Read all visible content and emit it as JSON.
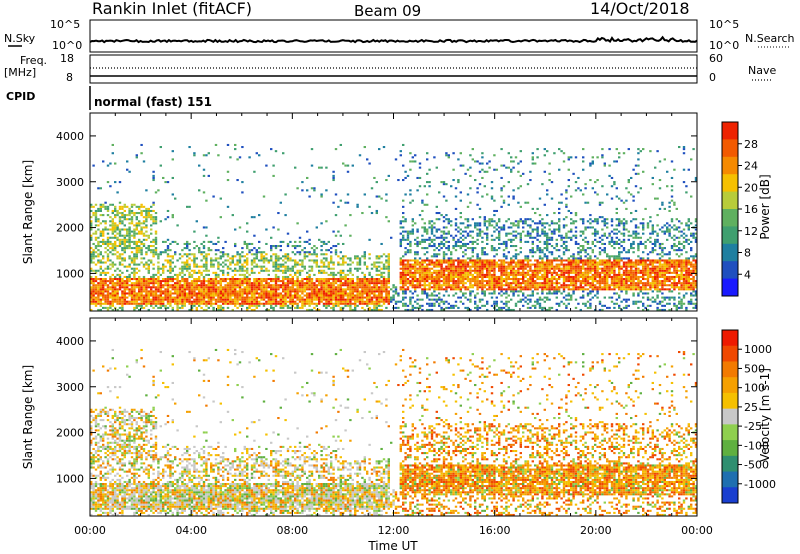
{
  "header": {
    "station": "Rankin Inlet (fitACF)",
    "beam": "Beam 09",
    "date": "14/Oct/2018"
  },
  "noise_panel": {
    "left_label": "N.Sky",
    "right_label": "N.Search",
    "ticks_left": [
      "10^5",
      "10^0"
    ],
    "ticks_right": [
      "10^5",
      "10^0"
    ]
  },
  "freq_panel": {
    "left_label_1": "Freq.",
    "left_label_2": "[MHz]",
    "right_label": "Nave",
    "ticks_left": [
      "18",
      "8"
    ],
    "ticks_right": [
      "60",
      "0"
    ]
  },
  "cpid": {
    "label": "CPID",
    "value": "normal (fast) 151"
  },
  "x_axis": {
    "title": "Time UT",
    "ticks": [
      "00:00",
      "04:00",
      "08:00",
      "12:00",
      "16:00",
      "20:00",
      "00:00"
    ]
  },
  "y_axis": {
    "title": "Slant Range [km]",
    "ticks": [
      "1000",
      "2000",
      "3000",
      "4000"
    ]
  },
  "chart_data": [
    {
      "type": "heatmap",
      "name": "power",
      "xlabel": "Time UT",
      "ylabel": "Slant Range [km]",
      "xlim": [
        "00:00",
        "24:00"
      ],
      "ylim": [
        180,
        4500
      ],
      "x_ticks": [
        "00:00",
        "04:00",
        "08:00",
        "12:00",
        "16:00",
        "20:00",
        "00:00"
      ],
      "y_ticks": [
        1000,
        2000,
        3000,
        4000
      ],
      "colorbar": {
        "label": "Power [dB]",
        "ticks": [
          "28",
          "24",
          "20",
          "16",
          "12",
          "8",
          "4"
        ],
        "range": [
          0,
          30
        ],
        "colors": [
          "#1a1aff",
          "#1f4fbf",
          "#1f7fa0",
          "#3f9f6f",
          "#5fb05f",
          "#b8cc3a",
          "#f5c000",
          "#f58a00",
          "#f25a00",
          "#ee2200"
        ]
      }
    },
    {
      "type": "heatmap",
      "name": "velocity",
      "xlabel": "Time UT",
      "ylabel": "Slant Range [km]",
      "xlim": [
        "00:00",
        "24:00"
      ],
      "ylim": [
        180,
        4500
      ],
      "x_ticks": [
        "00:00",
        "04:00",
        "08:00",
        "12:00",
        "16:00",
        "20:00",
        "00:00"
      ],
      "y_ticks": [
        1000,
        2000,
        3000,
        4000
      ],
      "colorbar": {
        "label": "Velocity [m s-1]",
        "ticks": [
          "1000",
          "500",
          "100",
          "25",
          "-25",
          "-100",
          "-500",
          "-1000"
        ],
        "colors": [
          "#1a3fd0",
          "#1f6fb0",
          "#2f8f70",
          "#5fb040",
          "#8fd04f",
          "#c8c8c8",
          "#f5c000",
          "#f5a000",
          "#f27a00",
          "#f04800",
          "#ee1a00"
        ]
      }
    }
  ]
}
